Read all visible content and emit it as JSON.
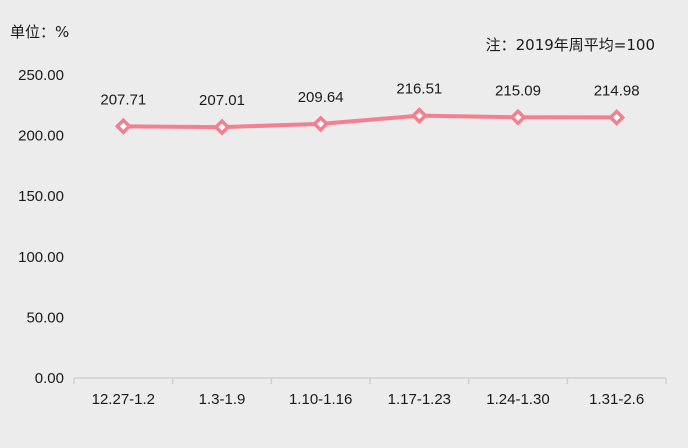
{
  "chart_data": {
    "type": "line",
    "unit_label": "单位：%",
    "note": "注：2019年周平均=100",
    "categories": [
      "12.27-1.2",
      "1.3-1.9",
      "1.10-1.16",
      "1.17-1.23",
      "1.24-1.30",
      "1.31-2.6"
    ],
    "series": [
      {
        "values": [
          207.71,
          207.01,
          209.64,
          216.51,
          215.09,
          214.98
        ]
      }
    ],
    "data_labels": [
      "207.71",
      "207.01",
      "209.64",
      "216.51",
      "215.09",
      "214.98"
    ],
    "yticks": [
      "0.00",
      "50.00",
      "100.00",
      "150.00",
      "200.00",
      "250.00"
    ],
    "ylim": [
      0,
      250
    ],
    "grid": false,
    "colors": {
      "line": "#f57f8f",
      "marker_fill": "#ffffff",
      "axis": "#d0d0d0"
    }
  }
}
